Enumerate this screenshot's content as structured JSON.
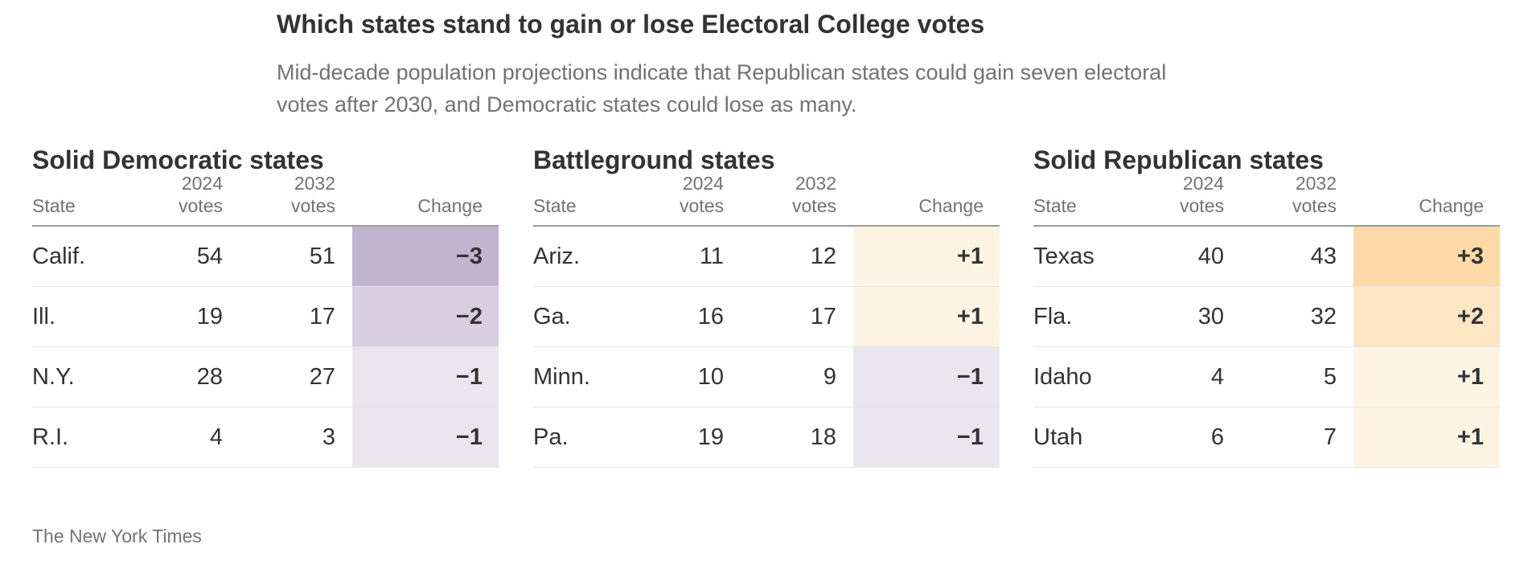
{
  "header": {
    "title": "Which states stand to gain or lose Electoral College votes",
    "subtitle_line1": "Mid-decade population projections indicate that Republican states could gain seven electoral",
    "subtitle_line2": "votes after 2030, and Democratic states could lose as many."
  },
  "columns": {
    "state": "State",
    "v2024_year": "2024",
    "v2032_year": "2032",
    "votes": "votes",
    "change": "Change"
  },
  "colors": {
    "neg3": "#c2b5d0",
    "neg2": "#d7cee1",
    "neg1": "#e9e6ed",
    "pos1": "#fef4e4",
    "pos2": "#fee6c4",
    "pos3": "#fddaa8"
  },
  "chart_data": {
    "type": "table",
    "groups": [
      {
        "title": "Solid Democratic states",
        "rows": [
          {
            "state": "Calif.",
            "v2024": "54",
            "v2032": "51",
            "change": "−3",
            "delta": -3
          },
          {
            "state": "Ill.",
            "v2024": "19",
            "v2032": "17",
            "change": "−2",
            "delta": -2
          },
          {
            "state": "N.Y.",
            "v2024": "28",
            "v2032": "27",
            "change": "−1",
            "delta": -1
          },
          {
            "state": "R.I.",
            "v2024": "4",
            "v2032": "3",
            "change": "−1",
            "delta": -1
          }
        ]
      },
      {
        "title": "Battleground states",
        "rows": [
          {
            "state": "Ariz.",
            "v2024": "11",
            "v2032": "12",
            "change": "+1",
            "delta": 1
          },
          {
            "state": "Ga.",
            "v2024": "16",
            "v2032": "17",
            "change": "+1",
            "delta": 1
          },
          {
            "state": "Minn.",
            "v2024": "10",
            "v2032": "9",
            "change": "−1",
            "delta": -1
          },
          {
            "state": "Pa.",
            "v2024": "19",
            "v2032": "18",
            "change": "−1",
            "delta": -1
          }
        ]
      },
      {
        "title": "Solid Republican states",
        "rows": [
          {
            "state": "Texas",
            "v2024": "40",
            "v2032": "43",
            "change": "+3",
            "delta": 3
          },
          {
            "state": "Fla.",
            "v2024": "30",
            "v2032": "32",
            "change": "+2",
            "delta": 2
          },
          {
            "state": "Idaho",
            "v2024": "4",
            "v2032": "5",
            "change": "+1",
            "delta": 1
          },
          {
            "state": "Utah",
            "v2024": "6",
            "v2032": "7",
            "change": "+1",
            "delta": 1
          }
        ]
      }
    ]
  },
  "source": "The New York Times"
}
